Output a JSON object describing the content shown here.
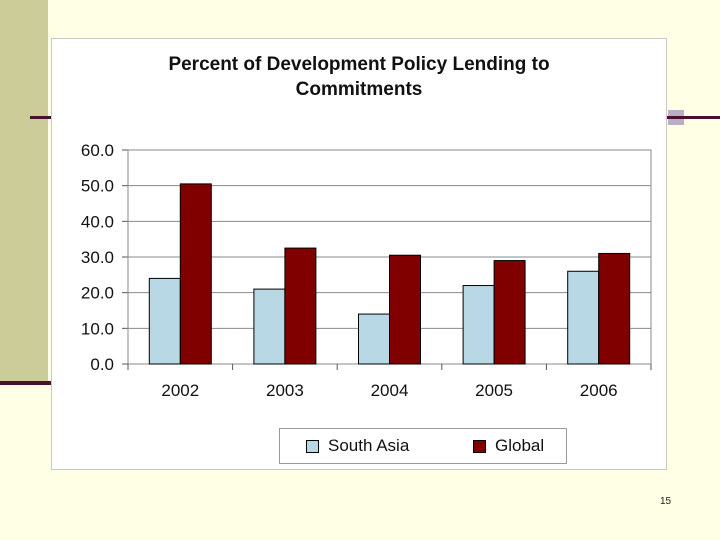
{
  "slide": {
    "page_number": "15"
  },
  "colors": {
    "south_asia": "#b8d8e6",
    "global": "#800000"
  },
  "chart_data": {
    "type": "bar",
    "title": "Percent of  Development Policy Lending to Commitments",
    "title_lines": [
      "Percent of  Development Policy Lending to",
      "Commitments"
    ],
    "categories": [
      "2002",
      "2003",
      "2004",
      "2005",
      "2006"
    ],
    "series": [
      {
        "name": "South Asia",
        "values": [
          24.0,
          21.0,
          14.0,
          22.0,
          26.0
        ]
      },
      {
        "name": "Global",
        "values": [
          50.5,
          32.5,
          30.5,
          29.0,
          31.0
        ]
      }
    ],
    "y_ticks": [
      "0.0",
      "10.0",
      "20.0",
      "30.0",
      "40.0",
      "50.0",
      "60.0"
    ],
    "ylim": [
      0,
      60
    ],
    "xlabel": "",
    "ylabel": "",
    "grid": true,
    "legend_position": "bottom"
  }
}
